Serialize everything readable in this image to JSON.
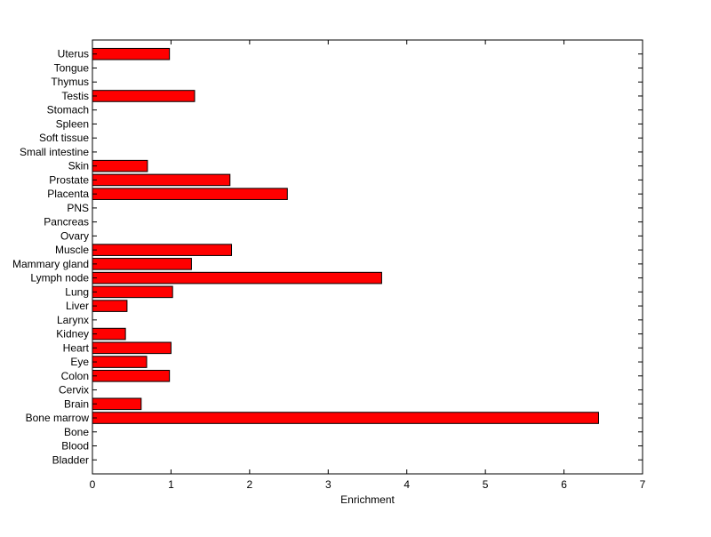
{
  "chart_data": {
    "type": "bar",
    "orientation": "horizontal",
    "title": "",
    "xlabel": "Enrichment",
    "ylabel": "",
    "xlim": [
      0,
      7
    ],
    "xticks": [
      0,
      1,
      2,
      3,
      4,
      5,
      6,
      7
    ],
    "grid": false,
    "legend": "none",
    "bar_color": "#ff0000",
    "bar_edge_color": "#000000",
    "categories": [
      "Bladder",
      "Blood",
      "Bone",
      "Bone marrow",
      "Brain",
      "Cervix",
      "Colon",
      "Eye",
      "Heart",
      "Kidney",
      "Larynx",
      "Liver",
      "Lung",
      "Lymph node",
      "Mammary gland",
      "Muscle",
      "Ovary",
      "Pancreas",
      "PNS",
      "Placenta",
      "Prostate",
      "Skin",
      "Small intestine",
      "Soft tissue",
      "Spleen",
      "Stomach",
      "Testis",
      "Thymus",
      "Tongue",
      "Uterus"
    ],
    "values": [
      0,
      0,
      0,
      6.44,
      0.62,
      0,
      0.98,
      0.69,
      1.0,
      0.42,
      0,
      0.44,
      1.02,
      3.68,
      1.26,
      1.77,
      0,
      0,
      0,
      2.48,
      1.75,
      0.7,
      0,
      0,
      0,
      0,
      1.3,
      0,
      0,
      0.98
    ]
  }
}
